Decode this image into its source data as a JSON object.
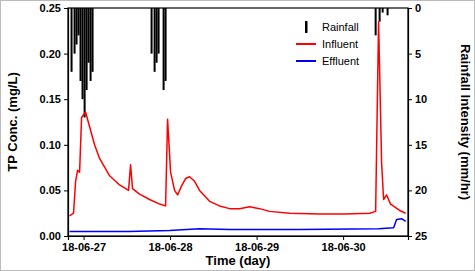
{
  "chart_data": {
    "type": "line",
    "x_label": "Time (day)",
    "y_label": "TP Conc. (mg/L)",
    "y2_label": "Rainfall Intensity (mm/hr)",
    "xlim": [
      -0.18,
      3.75
    ],
    "xticks": [
      {
        "value": 0,
        "label": "18-06-27"
      },
      {
        "value": 1,
        "label": "18-06-28"
      },
      {
        "value": 2,
        "label": "18-06-29"
      },
      {
        "value": 3,
        "label": "18-06-30"
      }
    ],
    "ylim": [
      0,
      0.25
    ],
    "yticks": [
      {
        "value": 0,
        "label": "0.00"
      },
      {
        "value": 0.05,
        "label": "0.05"
      },
      {
        "value": 0.1,
        "label": "0.10"
      },
      {
        "value": 0.15,
        "label": "0.15"
      },
      {
        "value": 0.2,
        "label": "0.20"
      },
      {
        "value": 0.25,
        "label": "0.25"
      }
    ],
    "y2lim": [
      25,
      0
    ],
    "y2ticks": [
      0,
      5,
      10,
      15,
      20,
      25
    ],
    "legend": "upper right",
    "grid": false,
    "series": [
      {
        "name": "Rainfall",
        "type": "bar",
        "axis": "y2",
        "color": "#000000",
        "x": [
          -0.139,
          -0.104,
          -0.081,
          -0.058,
          -0.035,
          -0.012,
          0.012,
          0.035,
          0.058,
          0.081,
          0.104,
          0.786,
          0.821,
          0.844,
          0.867,
          0.925,
          0.948,
          3.376,
          3.422,
          3.457,
          3.514
        ],
        "values": [
          7,
          5,
          4,
          3,
          8,
          10,
          12,
          9,
          6,
          8,
          7,
          5,
          7,
          6,
          5,
          9,
          8,
          3,
          1.5,
          0.5,
          0.8
        ]
      },
      {
        "name": "Influent",
        "type": "line",
        "color": "#ff0000",
        "x": [
          -0.162,
          -0.116,
          -0.092,
          -0.069,
          -0.046,
          -0.023,
          0.023,
          0.069,
          0.127,
          0.185,
          0.301,
          0.416,
          0.52,
          0.543,
          0.566,
          0.647,
          0.763,
          0.879,
          0.948,
          0.971,
          1.006,
          1.052,
          1.087,
          1.133,
          1.179,
          1.225,
          1.283,
          1.341,
          1.457,
          1.572,
          1.688,
          1.803,
          1.919,
          2.035,
          2.15,
          2.382,
          2.728,
          3.017,
          3.306,
          3.376,
          3.41,
          3.445,
          3.468,
          3.503,
          3.549,
          3.595,
          3.653,
          3.723
        ],
        "values": [
          0.022,
          0.025,
          0.06,
          0.072,
          0.07,
          0.13,
          0.136,
          0.12,
          0.1,
          0.085,
          0.066,
          0.056,
          0.05,
          0.078,
          0.052,
          0.046,
          0.04,
          0.035,
          0.033,
          0.128,
          0.07,
          0.05,
          0.045,
          0.055,
          0.063,
          0.065,
          0.06,
          0.05,
          0.038,
          0.033,
          0.03,
          0.03,
          0.032,
          0.03,
          0.027,
          0.025,
          0.024,
          0.024,
          0.025,
          0.027,
          0.235,
          0.08,
          0.04,
          0.045,
          0.035,
          0.032,
          0.028,
          0.025
        ]
      },
      {
        "name": "Effluent",
        "type": "line",
        "color": "#0000ff",
        "x": [
          -0.162,
          0.52,
          0.994,
          1.341,
          1.688,
          2.497,
          3.41,
          3.584,
          3.618,
          3.676,
          3.723
        ],
        "values": [
          0.005,
          0.005,
          0.006,
          0.008,
          0.007,
          0.007,
          0.008,
          0.009,
          0.018,
          0.019,
          0.016
        ]
      }
    ]
  }
}
